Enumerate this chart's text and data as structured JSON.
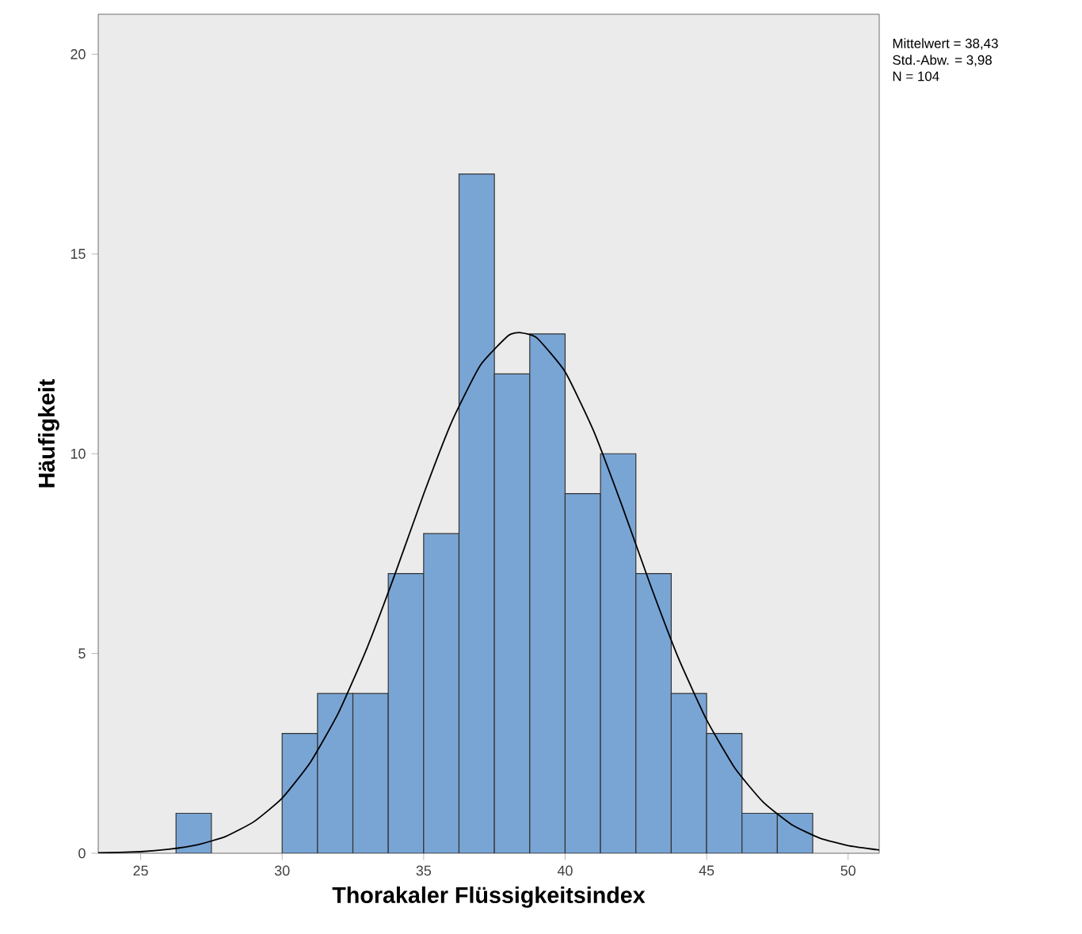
{
  "chart_data": {
    "type": "histogram",
    "xlabel": "Thorakaler Flüssigkeitsindex",
    "ylabel": "Häufigkeit",
    "bins": [
      26.25,
      27.5,
      28.75,
      30,
      31.25,
      32.5,
      33.75,
      35,
      36.25,
      37.5,
      38.75,
      40,
      41.25,
      42.5,
      43.75,
      45,
      46.25,
      47.5,
      48.75
    ],
    "values": [
      1,
      0,
      0,
      3,
      4,
      4,
      7,
      8,
      17,
      12,
      13,
      9,
      10,
      7,
      4,
      3,
      1,
      1
    ],
    "color": "#79a5d5",
    "series": [
      {
        "type": "line",
        "color": "#000000",
        "x": [
          23.5,
          25,
          26,
          27,
          28,
          29,
          30,
          31,
          32,
          33,
          34,
          35,
          36,
          37,
          38,
          38.43,
          39,
          40,
          41,
          42,
          43,
          44,
          45,
          46,
          47,
          48,
          49,
          50,
          51,
          51.1
        ],
        "values": [
          0.01,
          0.04,
          0.1,
          0.21,
          0.42,
          0.79,
          1.38,
          2.28,
          3.53,
          5.14,
          7.01,
          8.99,
          10.81,
          12.21,
          12.96,
          13.03,
          12.9,
          12.05,
          10.58,
          8.72,
          6.74,
          4.89,
          3.34,
          2.13,
          1.28,
          0.72,
          0.38,
          0.19,
          0.09,
          0.08
        ]
      }
    ],
    "xlim": [
      23.5,
      51.1
    ],
    "ylim": [
      0,
      21
    ],
    "xticks": [
      25,
      30,
      35,
      40,
      45,
      50
    ],
    "yticks": [
      0,
      5,
      10,
      15,
      20
    ],
    "annotations": [
      "Mittelwert = 38,43",
      "Std.-Abw. = 3,98",
      "N = 104"
    ]
  }
}
